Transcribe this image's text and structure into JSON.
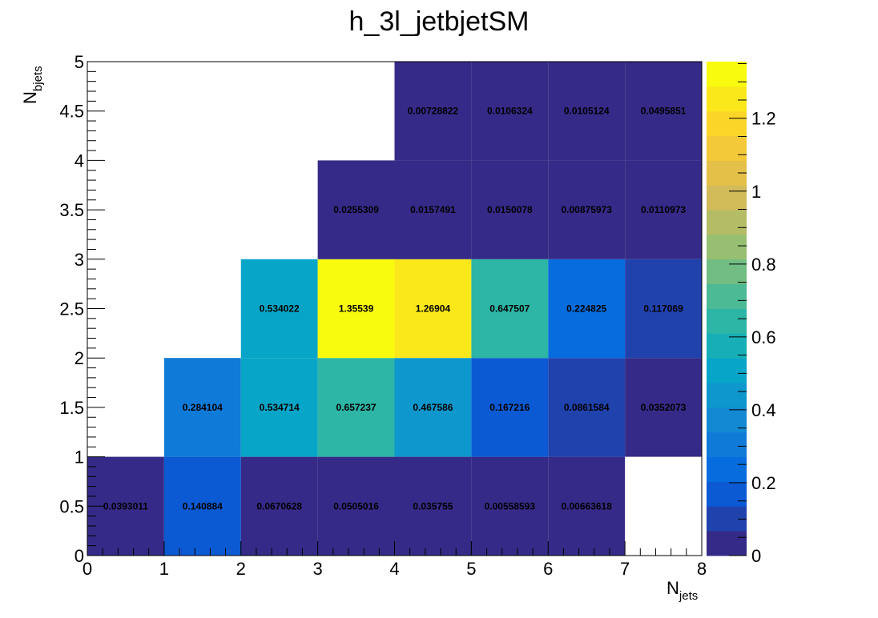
{
  "chart_data": {
    "type": "heatmap",
    "title": "h_3l_jetbjetSM",
    "xlabel": "N",
    "xlabel_sub": "jets",
    "ylabel": "N",
    "ylabel_sub": "bjets",
    "xlim": [
      0,
      8
    ],
    "ylim": [
      0,
      5
    ],
    "x_bins": [
      0,
      1,
      2,
      3,
      4,
      5,
      6,
      7,
      8
    ],
    "y_bins": [
      0,
      1,
      2,
      3,
      4,
      5
    ],
    "x_ticks": [
      "0",
      "1",
      "2",
      "3",
      "4",
      "5",
      "6",
      "7",
      "8"
    ],
    "y_ticks": [
      "0",
      "0.5",
      "1",
      "1.5",
      "2",
      "2.5",
      "3",
      "3.5",
      "4",
      "4.5",
      "5"
    ],
    "zlim": [
      0,
      1.35539
    ],
    "colorbar_ticks": [
      "0",
      "0.2",
      "0.4",
      "0.6",
      "0.8",
      "1",
      "1.2"
    ],
    "palette": [
      "#352a87",
      "#0363e1",
      "#1485d4",
      "#06a7c6",
      "#38b99e",
      "#92bf73",
      "#d9ba56",
      "#fcce2e",
      "#f9fb0e"
    ],
    "cells": [
      {
        "x": 0,
        "y": 0,
        "value": 0.0393011,
        "label": "0.0393011"
      },
      {
        "x": 1,
        "y": 0,
        "value": 0.140884,
        "label": "0.140884"
      },
      {
        "x": 2,
        "y": 0,
        "value": 0.0670628,
        "label": "0.0670628"
      },
      {
        "x": 3,
        "y": 0,
        "value": 0.0505016,
        "label": "0.0505016"
      },
      {
        "x": 4,
        "y": 0,
        "value": 0.035755,
        "label": "0.035755"
      },
      {
        "x": 5,
        "y": 0,
        "value": 0.00558593,
        "label": "0.00558593"
      },
      {
        "x": 6,
        "y": 0,
        "value": 0.00663618,
        "label": "0.00663618"
      },
      {
        "x": 1,
        "y": 1,
        "value": 0.284104,
        "label": "0.284104"
      },
      {
        "x": 2,
        "y": 1,
        "value": 0.534714,
        "label": "0.534714"
      },
      {
        "x": 3,
        "y": 1,
        "value": 0.657237,
        "label": "0.657237"
      },
      {
        "x": 4,
        "y": 1,
        "value": 0.467586,
        "label": "0.467586"
      },
      {
        "x": 5,
        "y": 1,
        "value": 0.167216,
        "label": "0.167216"
      },
      {
        "x": 6,
        "y": 1,
        "value": 0.0861584,
        "label": "0.0861584"
      },
      {
        "x": 7,
        "y": 1,
        "value": 0.0352073,
        "label": "0.0352073"
      },
      {
        "x": 2,
        "y": 2,
        "value": 0.534022,
        "label": "0.534022"
      },
      {
        "x": 3,
        "y": 2,
        "value": 1.35539,
        "label": "1.35539"
      },
      {
        "x": 4,
        "y": 2,
        "value": 1.26904,
        "label": "1.26904"
      },
      {
        "x": 5,
        "y": 2,
        "value": 0.647507,
        "label": "0.647507"
      },
      {
        "x": 6,
        "y": 2,
        "value": 0.224825,
        "label": "0.224825"
      },
      {
        "x": 7,
        "y": 2,
        "value": 0.117069,
        "label": "0.117069"
      },
      {
        "x": 3,
        "y": 3,
        "value": 0.0255309,
        "label": "0.0255309"
      },
      {
        "x": 4,
        "y": 3,
        "value": 0.0157491,
        "label": "0.0157491"
      },
      {
        "x": 5,
        "y": 3,
        "value": 0.0150078,
        "label": "0.0150078"
      },
      {
        "x": 6,
        "y": 3,
        "value": 0.00875973,
        "label": "0.00875973"
      },
      {
        "x": 7,
        "y": 3,
        "value": 0.0110973,
        "label": "0.0110973"
      },
      {
        "x": 4,
        "y": 4,
        "value": 0.00728822,
        "label": "0.00728822"
      },
      {
        "x": 5,
        "y": 4,
        "value": 0.0106324,
        "label": "0.0106324"
      },
      {
        "x": 6,
        "y": 4,
        "value": 0.0105124,
        "label": "0.0105124"
      },
      {
        "x": 7,
        "y": 4,
        "value": 0.0495851,
        "label": "0.0495851"
      }
    ],
    "grid": false,
    "legend": "colorbar-right"
  }
}
